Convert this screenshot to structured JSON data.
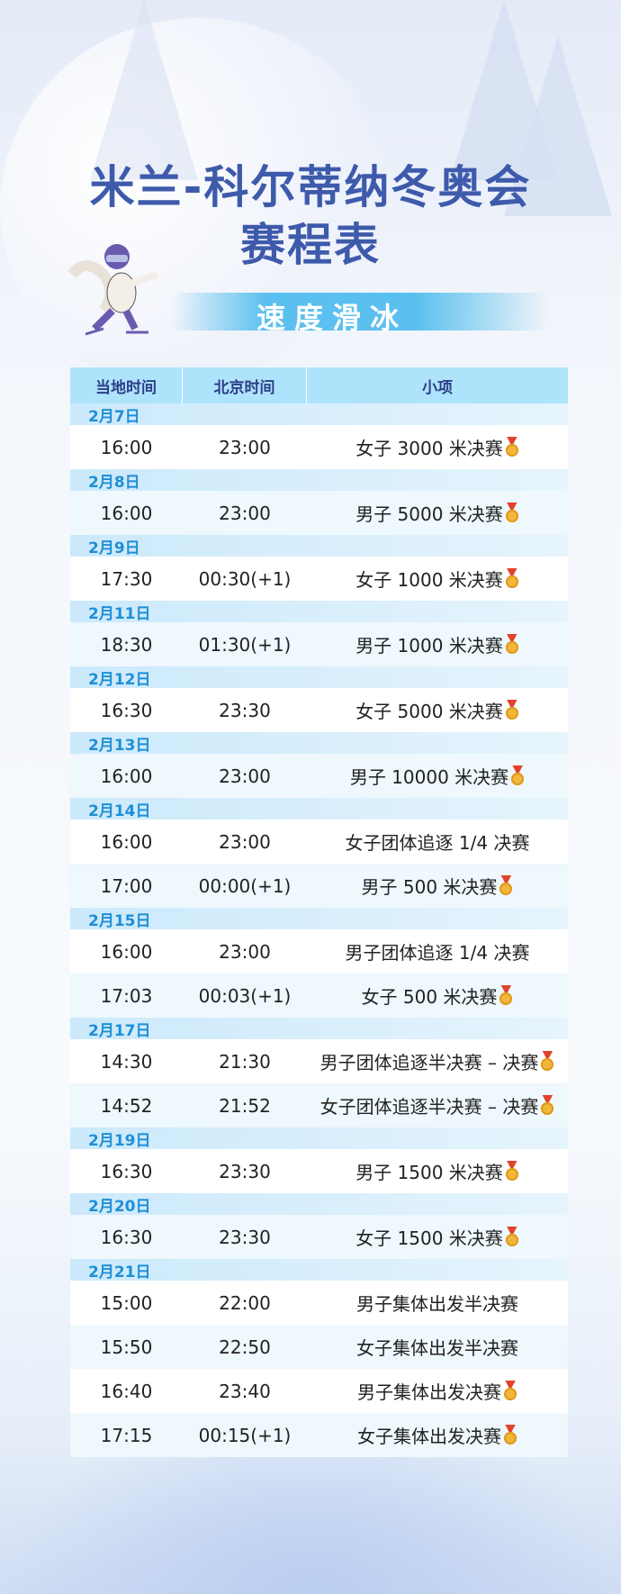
{
  "title": {
    "line1": "米兰-科尔蒂纳冬奥会",
    "line2": "赛程表"
  },
  "banner": "速度滑冰",
  "headers": [
    "当地时间",
    "北京时间",
    "小项"
  ],
  "colors": {
    "title": "#3e5aab",
    "banner": "#5bc0ef",
    "header_bg": "#aee4fb",
    "date_text": "#1f8fd6"
  },
  "days": [
    {
      "date": "2月7日",
      "rows": [
        {
          "local": "16:00",
          "beijing": "23:00",
          "event": "女子 3000 米决赛",
          "medal": true
        }
      ]
    },
    {
      "date": "2月8日",
      "rows": [
        {
          "local": "16:00",
          "beijing": "23:00",
          "event": "男子 5000 米决赛",
          "medal": true
        }
      ]
    },
    {
      "date": "2月9日",
      "rows": [
        {
          "local": "17:30",
          "beijing": "00:30(+1)",
          "event": "女子 1000 米决赛",
          "medal": true
        }
      ]
    },
    {
      "date": "2月11日",
      "rows": [
        {
          "local": "18:30",
          "beijing": "01:30(+1)",
          "event": "男子 1000 米决赛",
          "medal": true
        }
      ]
    },
    {
      "date": "2月12日",
      "rows": [
        {
          "local": "16:30",
          "beijing": "23:30",
          "event": "女子 5000 米决赛",
          "medal": true
        }
      ]
    },
    {
      "date": "2月13日",
      "rows": [
        {
          "local": "16:00",
          "beijing": "23:00",
          "event": "男子 10000 米决赛",
          "medal": true
        }
      ]
    },
    {
      "date": "2月14日",
      "rows": [
        {
          "local": "16:00",
          "beijing": "23:00",
          "event": "女子团体追逐 1/4 决赛",
          "medal": false
        },
        {
          "local": "17:00",
          "beijing": "00:00(+1)",
          "event": "男子 500 米决赛",
          "medal": true
        }
      ]
    },
    {
      "date": "2月15日",
      "rows": [
        {
          "local": "16:00",
          "beijing": "23:00",
          "event": "男子团体追逐 1/4 决赛",
          "medal": false
        },
        {
          "local": "17:03",
          "beijing": "00:03(+1)",
          "event": "女子 500 米决赛",
          "medal": true
        }
      ]
    },
    {
      "date": "2月17日",
      "rows": [
        {
          "local": "14:30",
          "beijing": "21:30",
          "event": "男子团体追逐半决赛 – 决赛",
          "medal": true
        },
        {
          "local": "14:52",
          "beijing": "21:52",
          "event": "女子团体追逐半决赛 – 决赛",
          "medal": true
        }
      ]
    },
    {
      "date": "2月19日",
      "rows": [
        {
          "local": "16:30",
          "beijing": "23:30",
          "event": "男子 1500 米决赛",
          "medal": true
        }
      ]
    },
    {
      "date": "2月20日",
      "rows": [
        {
          "local": "16:30",
          "beijing": "23:30",
          "event": "女子 1500 米决赛",
          "medal": true
        }
      ]
    },
    {
      "date": "2月21日",
      "rows": [
        {
          "local": "15:00",
          "beijing": "22:00",
          "event": "男子集体出发半决赛",
          "medal": false
        },
        {
          "local": "15:50",
          "beijing": "22:50",
          "event": "女子集体出发半决赛",
          "medal": false
        },
        {
          "local": "16:40",
          "beijing": "23:40",
          "event": "男子集体出发决赛",
          "medal": true
        },
        {
          "local": "17:15",
          "beijing": "00:15(+1)",
          "event": "女子集体出发决赛",
          "medal": true
        }
      ]
    }
  ]
}
